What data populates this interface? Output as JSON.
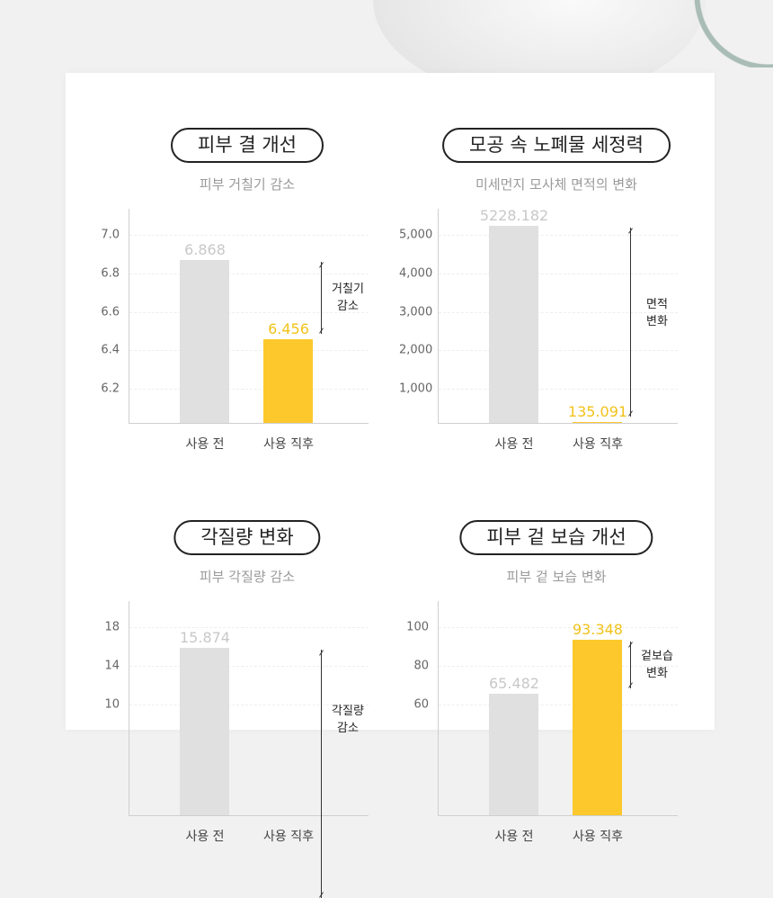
{
  "colors": {
    "before": "#e0e0e0",
    "after": "#fcc82c",
    "before_label": "#c8c8c8",
    "after_label": "#f2c21a"
  },
  "chart_data": [
    {
      "type": "bar",
      "title": "피부 결 개선",
      "subtitle": "피부 거칠기 감소",
      "categories": [
        "사용 전",
        "사용 직후"
      ],
      "values": [
        6.868,
        6.456
      ],
      "value_labels": [
        "6.868",
        "6.456"
      ],
      "yticks": [
        "7.0",
        "6.8",
        "6.6",
        "6.4",
        "6.2"
      ],
      "ytick_values": [
        7.0,
        6.8,
        6.6,
        6.4,
        6.2
      ],
      "annotation": "거칠기\n감소",
      "grid": true
    },
    {
      "type": "bar",
      "title": "모공 속 노폐물 세정력",
      "subtitle": "미세먼지 모사체 면적의 변화",
      "categories": [
        "사용 전",
        "사용 직후"
      ],
      "values": [
        5228.182,
        135.091
      ],
      "value_labels": [
        "5228.182",
        "135.091"
      ],
      "yticks": [
        "5,000",
        "4,000",
        "3,000",
        "2,000",
        "1,000"
      ],
      "ytick_values": [
        5000,
        4000,
        3000,
        2000,
        1000
      ],
      "annotation": "면적\n변화",
      "grid": true
    },
    {
      "type": "bar",
      "title": "각질량 변화",
      "subtitle": "피부 각질량 감소",
      "categories": [
        "사용 전",
        "사용 직후"
      ],
      "values": [
        15.874,
        null
      ],
      "value_labels": [
        "15.874",
        ""
      ],
      "yticks": [
        "18",
        "14",
        "10"
      ],
      "ytick_values": [
        18,
        14,
        10
      ],
      "annotation": "각질량\n감소",
      "grid": true
    },
    {
      "type": "bar",
      "title": "피부 겉 보습 개선",
      "subtitle": "피부 겉 보습 변화",
      "categories": [
        "사용 전",
        "사용 직후"
      ],
      "values": [
        65.482,
        93.348
      ],
      "value_labels": [
        "65.482",
        "93.348"
      ],
      "yticks": [
        "100",
        "80",
        "60"
      ],
      "ytick_values": [
        100,
        80,
        60
      ],
      "annotation": "겉보습\n변화",
      "grid": true
    }
  ]
}
